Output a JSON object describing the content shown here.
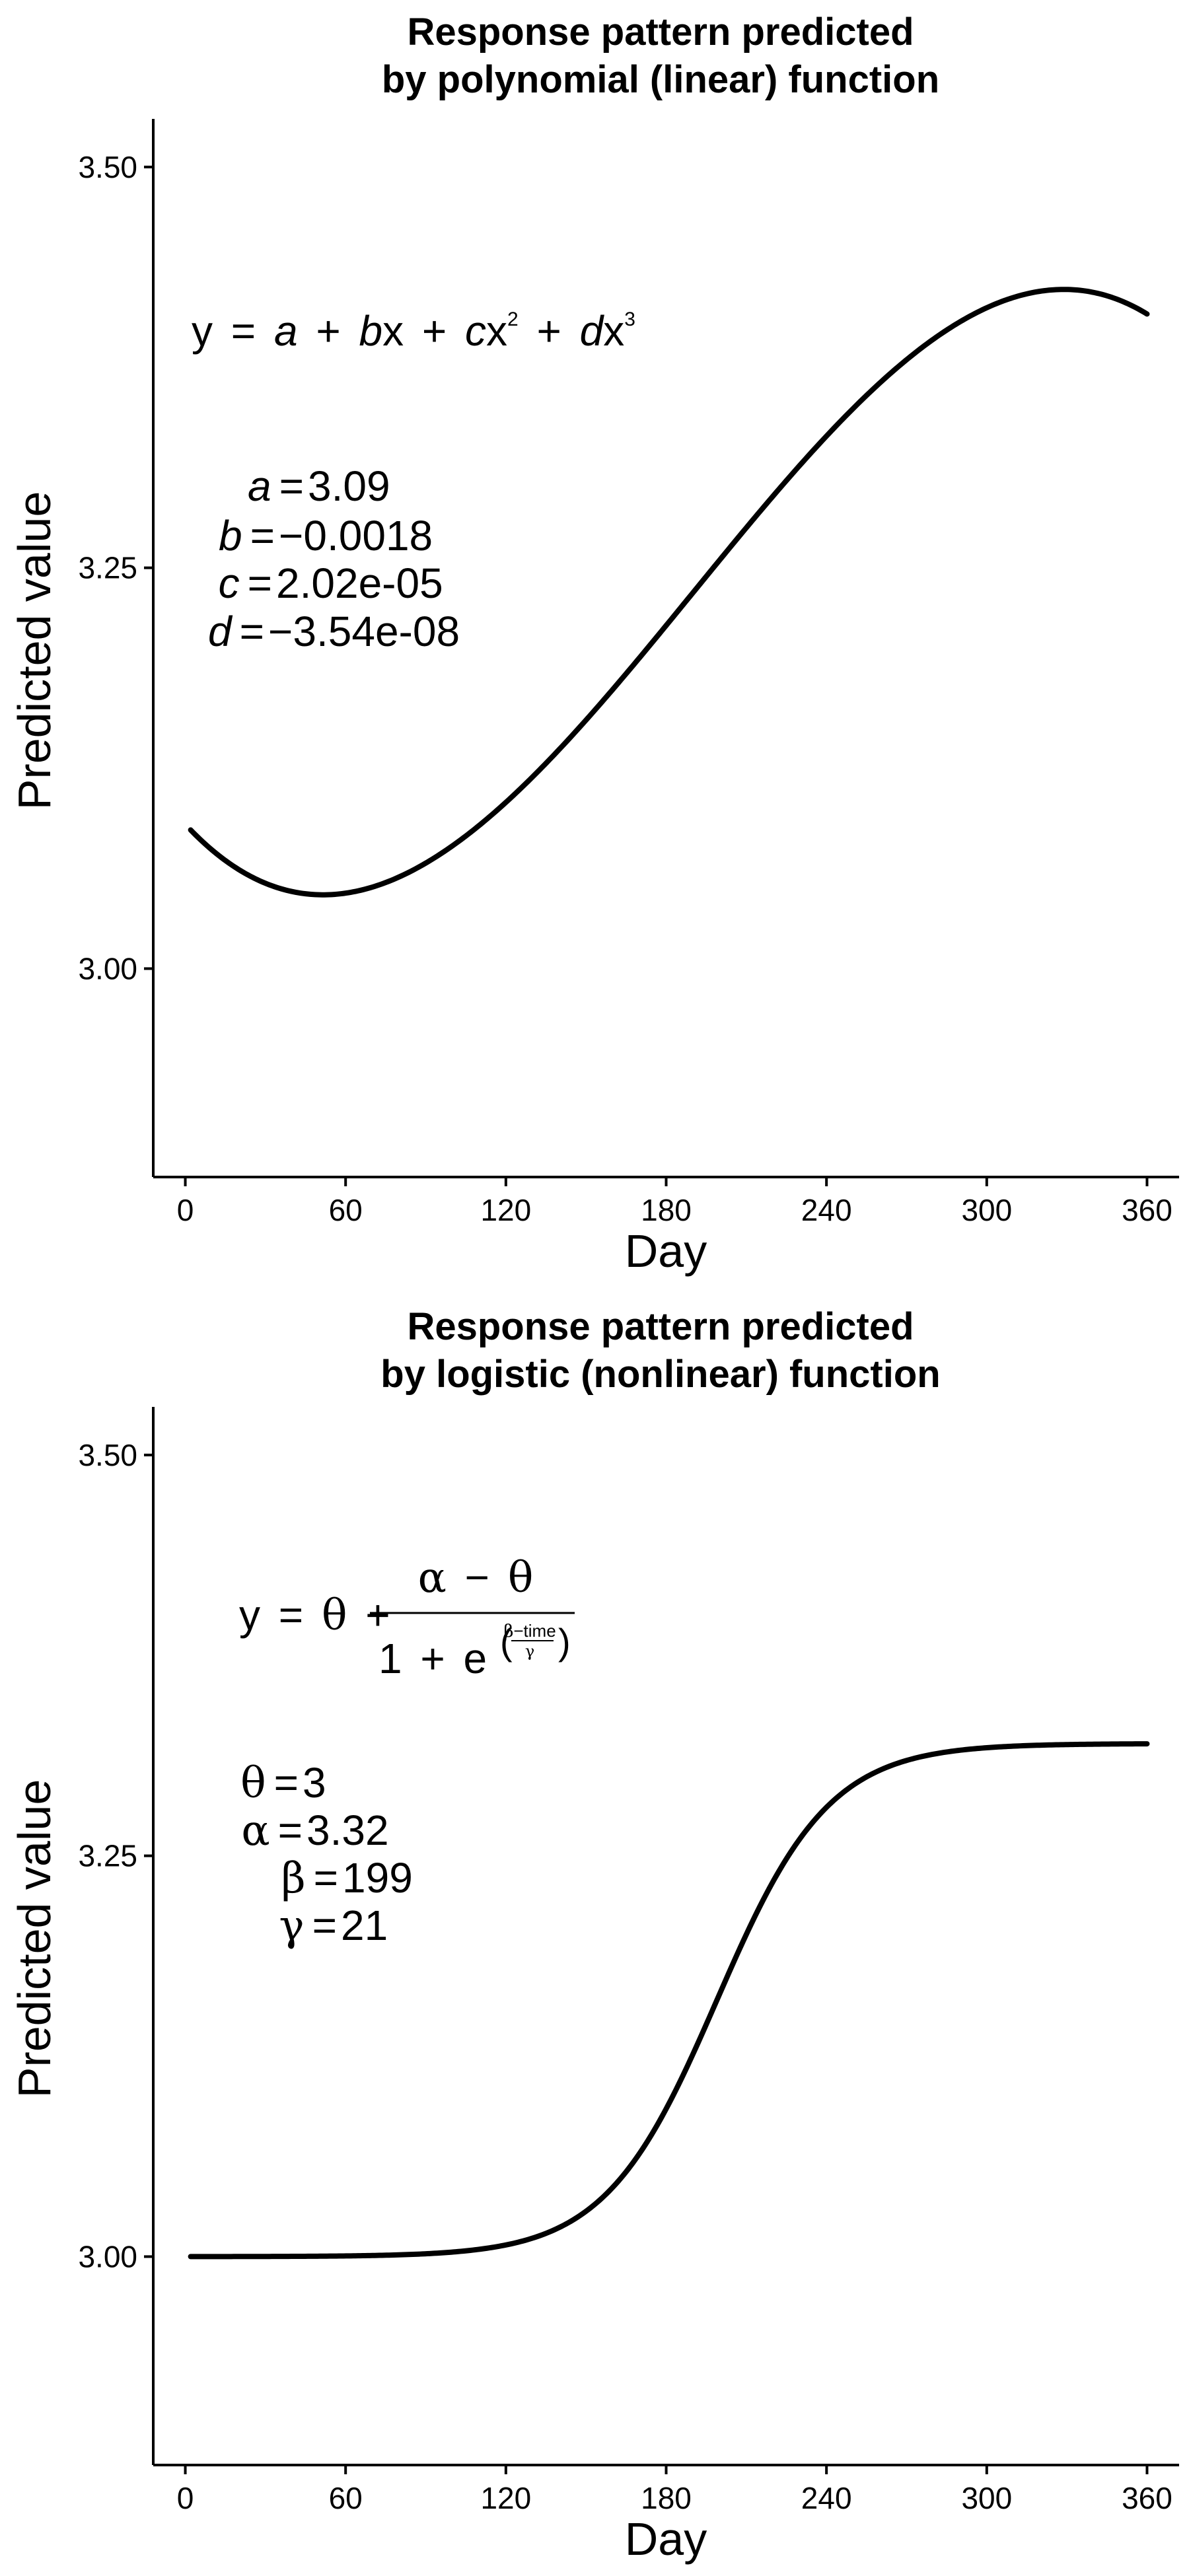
{
  "chart_data": [
    {
      "type": "line",
      "title_line1": "Response pattern predicted",
      "title_line2": "by polynomial (linear) function",
      "xlabel": "Day",
      "ylabel": "Predicted value",
      "xlim": [
        -12,
        372
      ],
      "ylim": [
        2.87,
        3.53
      ],
      "xticks": [
        0,
        60,
        120,
        180,
        240,
        300,
        360
      ],
      "yticks": [
        3.0,
        3.25,
        3.5
      ],
      "ytick_labels": [
        "3.00",
        "3.25",
        "3.50"
      ],
      "function": "polynomial",
      "x_range": [
        2,
        360
      ],
      "equation": {
        "y": "y",
        "eq": "=",
        "a": "a",
        "plus": "+",
        "b": "b",
        "x": "x",
        "c": "c",
        "d": "d",
        "two": "2",
        "three": "3"
      },
      "params": [
        {
          "name": "a",
          "eq": "=",
          "value": "3.09"
        },
        {
          "name": "b",
          "eq": "=",
          "value": "−0.0018"
        },
        {
          "name": "c",
          "eq": "=",
          "value": "2.02e-05"
        },
        {
          "name": "d",
          "eq": "=",
          "value": "−3.54e-08"
        }
      ],
      "coefficients": {
        "a": 3.09,
        "b": -0.0018,
        "c": 2.02e-05,
        "d": -3.54e-08
      }
    },
    {
      "type": "line",
      "title_line1": "Response pattern predicted",
      "title_line2": "by logistic (nonlinear) function",
      "xlabel": "Day",
      "ylabel": "Predicted value",
      "xlim": [
        -12,
        372
      ],
      "ylim": [
        2.87,
        3.53
      ],
      "xticks": [
        0,
        60,
        120,
        180,
        240,
        300,
        360
      ],
      "yticks": [
        3.0,
        3.25,
        3.5
      ],
      "ytick_labels": [
        "3.00",
        "3.25",
        "3.50"
      ],
      "function": "logistic",
      "x_range": [
        2,
        360
      ],
      "equation": {
        "y": "y",
        "eq": "=",
        "theta": "θ",
        "plus": "+",
        "alpha": "α",
        "minus": "−",
        "one": "1",
        "e": "e",
        "beta": "β",
        "time": "time",
        "gamma": "γ"
      },
      "params": [
        {
          "name": "θ",
          "eq": "=",
          "value": "3"
        },
        {
          "name": "α",
          "eq": "=",
          "value": "3.32"
        },
        {
          "name": "β",
          "eq": "=",
          "value": "199"
        },
        {
          "name": "γ",
          "eq": "=",
          "value": "21"
        }
      ],
      "coefficients": {
        "theta": 3,
        "alpha": 3.32,
        "beta": 199,
        "gamma": 21
      }
    }
  ]
}
